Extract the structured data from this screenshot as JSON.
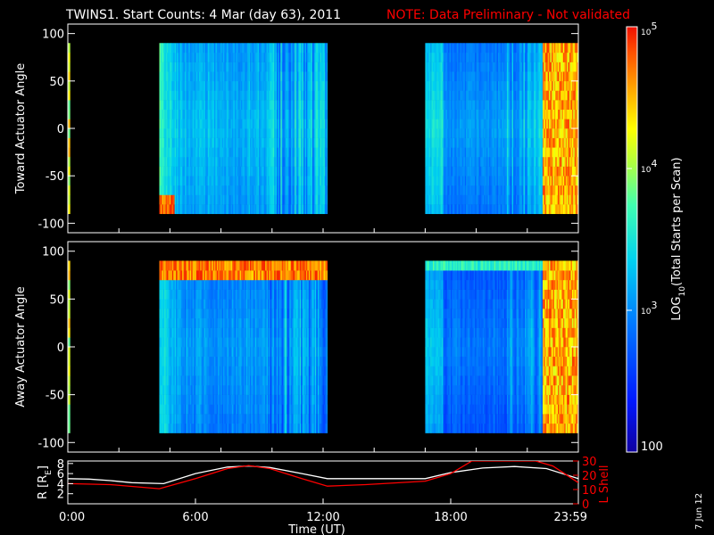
{
  "title": {
    "main": "TWINS1. Start Counts:  4 Mar (day  63), 2011",
    "note": "NOTE: Data Preliminary - Not validated",
    "note_color": "#ff0000"
  },
  "footer_date": "7 Jun 12",
  "chart_data": [
    {
      "type": "heatmap",
      "panel": "toward",
      "ylabel": "Toward Actuator Angle",
      "ylim": [
        -110,
        110
      ],
      "yticks": [
        "100",
        "50",
        "0",
        "-50",
        "-100"
      ],
      "ytick_values": [
        100,
        50,
        0,
        -50,
        -100
      ],
      "xlim_hours": [
        0,
        24
      ],
      "data_blocks_hours": [
        [
          0,
          0.1
        ],
        [
          4.3,
          12.2
        ],
        [
          16.8,
          24
        ]
      ],
      "angle_range": [
        -90,
        90
      ]
    },
    {
      "type": "heatmap",
      "panel": "away",
      "ylabel": "Away Actuator Angle",
      "ylim": [
        -110,
        110
      ],
      "yticks": [
        "100",
        "50",
        "0",
        "-50",
        "-100"
      ],
      "ytick_values": [
        100,
        50,
        0,
        -50,
        -100
      ],
      "xlim_hours": [
        0,
        24
      ],
      "data_blocks_hours": [
        [
          0,
          0.1
        ],
        [
          4.3,
          12.2
        ],
        [
          16.8,
          24
        ]
      ],
      "angle_range": [
        -90,
        90
      ]
    },
    {
      "type": "line",
      "panel": "orbit",
      "ylabel_left": "R [R",
      "ylabel_left_sub": "E",
      "ylabel_left_end": "]",
      "yticks_left": [
        "8",
        "6",
        "4",
        "2"
      ],
      "ytick_values_left": [
        8,
        6,
        4,
        2
      ],
      "ylim_left": [
        0,
        8.5
      ],
      "ylabel_right": "L Shell",
      "yticks_right": [
        "30",
        "20",
        "10",
        "0"
      ],
      "ytick_values_right": [
        30,
        20,
        10,
        0
      ],
      "ylim_right": [
        0,
        30
      ],
      "right_color": "#ff0000",
      "xlabel": "Time (UT)",
      "xticks": [
        "0:00",
        "6:00",
        "12:00",
        "18:00",
        "23:59"
      ],
      "xtick_hours": [
        0,
        6,
        12,
        18,
        24
      ],
      "series": [
        {
          "color": "#ffffff",
          "x": [
            0,
            1,
            2,
            3,
            4.5,
            6,
            7.5,
            8.5,
            9.5,
            11,
            12.2,
            14,
            16.8,
            18,
            19.5,
            21,
            22.5,
            24
          ],
          "y": [
            5.0,
            4.9,
            4.6,
            4.2,
            4.0,
            6.0,
            7.3,
            7.5,
            7.2,
            6.0,
            5.0,
            5.0,
            5.0,
            6.2,
            7.1,
            7.4,
            7.0,
            5.0
          ]
        },
        {
          "color": "#ff0000",
          "x": [
            0,
            2,
            4.3,
            6,
            7.5,
            8.5,
            9.5,
            11,
            12.2,
            14,
            16.8,
            18,
            19,
            22,
            22.8,
            24
          ],
          "y": [
            4.0,
            3.8,
            3.0,
            5.0,
            7.0,
            7.6,
            7.0,
            5.0,
            3.5,
            3.8,
            4.5,
            6.0,
            8.5,
            8.5,
            7.5,
            4.2
          ]
        }
      ]
    }
  ],
  "colorbar": {
    "label": "LOG",
    "label_sub": "10",
    "label_end": "(Total Starts per Scan)",
    "ticks": [
      {
        "base": "10",
        "exp": "5"
      },
      {
        "base": "10",
        "exp": "4"
      },
      {
        "base": "10",
        "exp": "3"
      },
      {
        "plain": "100"
      }
    ],
    "tick_log_values": [
      5,
      4,
      3,
      2
    ],
    "log_range": [
      2,
      5
    ]
  }
}
